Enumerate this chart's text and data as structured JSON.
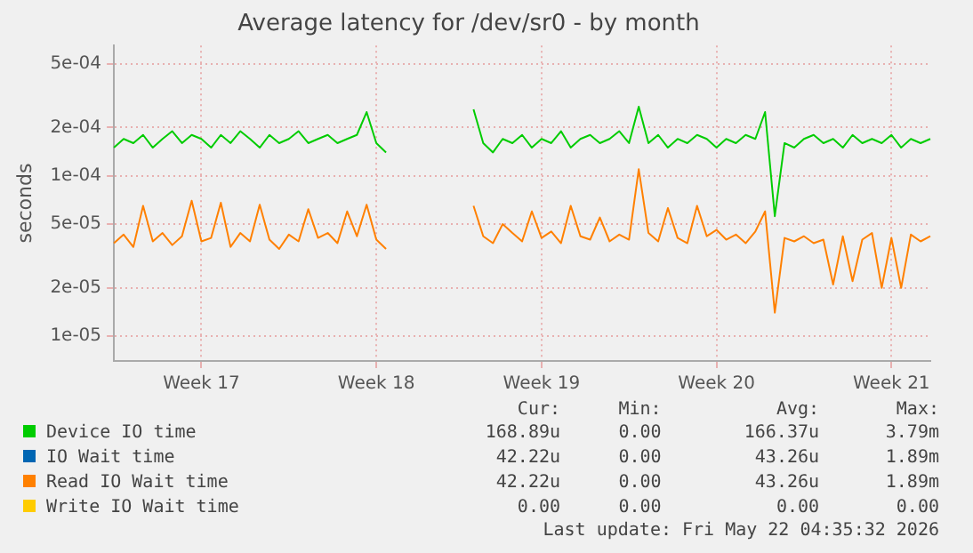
{
  "chart_data": {
    "type": "line",
    "title": "Average latency for /dev/sr0 - by month",
    "ylabel": "seconds",
    "log": "y",
    "grid": true,
    "legend": "bottom",
    "marker": "none",
    "line_style": "solid",
    "ylim": [
      7e-06,
      0.00065
    ],
    "yticks": [
      {
        "value": 1e-05,
        "label": "1e-05"
      },
      {
        "value": 2e-05,
        "label": "2e-05"
      },
      {
        "value": 5e-05,
        "label": "5e-05"
      },
      {
        "value": 0.0001,
        "label": "1e-04"
      },
      {
        "value": 0.0002,
        "label": "2e-04"
      },
      {
        "value": 0.0005,
        "label": "5e-04"
      }
    ],
    "categories": [
      null,
      null,
      null,
      null,
      null,
      null,
      null,
      null,
      null,
      "Week 17",
      null,
      null,
      null,
      null,
      null,
      null,
      null,
      null,
      null,
      null,
      null,
      null,
      null,
      null,
      null,
      null,
      null,
      "Week 18",
      null,
      null,
      null,
      null,
      null,
      null,
      null,
      null,
      null,
      null,
      null,
      null,
      null,
      null,
      null,
      null,
      "Week 19",
      null,
      null,
      null,
      null,
      null,
      null,
      null,
      null,
      null,
      null,
      null,
      null,
      null,
      null,
      null,
      null,
      null,
      "Week 20",
      null,
      null,
      null,
      null,
      null,
      null,
      null,
      null,
      null,
      null,
      null,
      null,
      null,
      null,
      null,
      null,
      null,
      "Week 21",
      null,
      null,
      null,
      null
    ],
    "series": [
      {
        "name": "Device IO time",
        "color": "#00cc00",
        "values": [
          0.00015,
          0.00017,
          0.00016,
          0.00018,
          0.00015,
          0.00017,
          0.00019,
          0.00016,
          0.00018,
          0.00017,
          0.00015,
          0.00018,
          0.00016,
          0.00019,
          0.00017,
          0.00015,
          0.00018,
          0.00016,
          0.00017,
          0.00019,
          0.00016,
          0.00017,
          0.00018,
          0.00016,
          0.00017,
          0.00018,
          0.00025,
          0.00016,
          0.00014,
          null,
          null,
          null,
          null,
          null,
          null,
          null,
          null,
          0.00026,
          0.00016,
          0.00014,
          0.00017,
          0.00016,
          0.00018,
          0.00015,
          0.00017,
          0.00016,
          0.00019,
          0.00015,
          0.00017,
          0.00018,
          0.00016,
          0.00017,
          0.00019,
          0.00016,
          0.00027,
          0.00016,
          0.00018,
          0.00015,
          0.00017,
          0.00016,
          0.00018,
          0.00017,
          0.00015,
          0.00017,
          0.00016,
          0.00018,
          0.00017,
          0.00025,
          5.6e-05,
          0.00016,
          0.00015,
          0.00017,
          0.00018,
          0.00016,
          0.00017,
          0.00015,
          0.00018,
          0.00016,
          0.00017,
          0.00016,
          0.00018,
          0.00015,
          0.00017,
          0.00016,
          0.00017
        ]
      },
      {
        "name": "IO Wait time",
        "color": "#0066b3",
        "values": [
          null,
          null,
          null,
          null,
          null,
          null,
          null,
          null,
          null,
          null,
          null,
          null,
          null,
          null,
          null,
          null,
          null,
          null,
          null,
          null,
          null,
          null,
          null,
          null,
          null,
          null,
          null,
          null,
          null,
          null,
          null,
          null,
          null,
          null,
          null,
          null,
          null,
          null,
          null,
          null,
          null,
          null,
          null,
          null,
          null,
          null,
          null,
          null,
          null,
          null,
          null,
          null,
          null,
          null,
          null,
          null,
          null,
          null,
          null,
          null,
          null,
          null,
          null,
          null,
          null,
          null,
          null,
          null,
          null,
          null,
          null,
          null,
          null,
          null,
          null,
          null,
          null,
          null,
          null,
          null,
          null,
          null,
          null,
          null,
          null
        ]
      },
      {
        "name": "Read IO Wait time",
        "color": "#ff8000",
        "values": [
          3.8e-05,
          4.3e-05,
          3.6e-05,
          6.5e-05,
          3.9e-05,
          4.4e-05,
          3.7e-05,
          4.2e-05,
          7e-05,
          3.9e-05,
          4.1e-05,
          6.8e-05,
          3.6e-05,
          4.4e-05,
          3.9e-05,
          6.6e-05,
          4e-05,
          3.5e-05,
          4.3e-05,
          3.9e-05,
          6.2e-05,
          4.1e-05,
          4.4e-05,
          3.8e-05,
          6e-05,
          4.2e-05,
          6.6e-05,
          4e-05,
          3.5e-05,
          null,
          null,
          null,
          null,
          null,
          null,
          null,
          null,
          6.5e-05,
          4.2e-05,
          3.8e-05,
          5e-05,
          4.4e-05,
          3.9e-05,
          6e-05,
          4.1e-05,
          4.5e-05,
          3.8e-05,
          6.5e-05,
          4.2e-05,
          4e-05,
          5.5e-05,
          3.9e-05,
          4.3e-05,
          4e-05,
          0.00011,
          4.4e-05,
          3.9e-05,
          6.3e-05,
          4.1e-05,
          3.8e-05,
          6.5e-05,
          4.2e-05,
          4.6e-05,
          4e-05,
          4.3e-05,
          3.8e-05,
          4.5e-05,
          6e-05,
          1.4e-05,
          4.1e-05,
          3.9e-05,
          4.2e-05,
          3.8e-05,
          4e-05,
          2.1e-05,
          4.2e-05,
          2.2e-05,
          4e-05,
          4.4e-05,
          2e-05,
          4.1e-05,
          2e-05,
          4.3e-05,
          3.9e-05,
          4.2e-05
        ]
      },
      {
        "name": "Write IO Wait time",
        "color": "#ffcc00",
        "values": [
          null,
          null,
          null,
          null,
          null,
          null,
          null,
          null,
          null,
          null,
          null,
          null,
          null,
          null,
          null,
          null,
          null,
          null,
          null,
          null,
          null,
          null,
          null,
          null,
          null,
          null,
          null,
          null,
          null,
          null,
          null,
          null,
          null,
          null,
          null,
          null,
          null,
          null,
          null,
          null,
          null,
          null,
          null,
          null,
          null,
          null,
          null,
          null,
          null,
          null,
          null,
          null,
          null,
          null,
          null,
          null,
          null,
          null,
          null,
          null,
          null,
          null,
          null,
          null,
          null,
          null,
          null,
          null,
          null,
          null,
          null,
          null,
          null,
          null,
          null,
          null,
          null,
          null,
          null,
          null,
          null,
          null,
          null,
          null,
          null
        ]
      }
    ],
    "annotations": [
      "Cur:",
      "Min:",
      "Avg:",
      "Max:",
      "168.89u",
      "0.00",
      "166.37u",
      "3.79m",
      "42.22u",
      "0.00",
      "43.26u",
      "1.89m",
      "42.22u",
      "0.00",
      "43.26u",
      "1.89m",
      "0.00",
      "0.00",
      "0.00",
      "0.00",
      "Last update: Fri May 22 04:35:32 2026"
    ]
  }
}
